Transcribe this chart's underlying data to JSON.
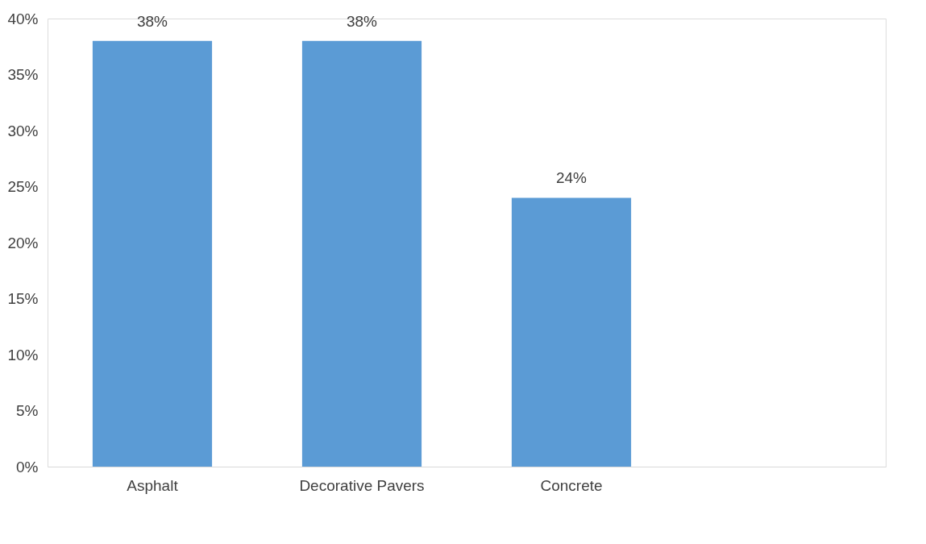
{
  "chart_data": {
    "type": "bar",
    "categories": [
      "Asphalt",
      "Decorative Pavers",
      "Concrete",
      null
    ],
    "values": [
      38,
      38,
      24,
      null
    ],
    "value_labels": [
      "38%",
      "38%",
      "24%",
      null
    ],
    "color": "#5b9bd5",
    "ylim": [
      0,
      40
    ],
    "yticks": [
      {
        "value": 0,
        "label": "0%"
      },
      {
        "value": 5,
        "label": "5%"
      },
      {
        "value": 10,
        "label": "10%"
      },
      {
        "value": 15,
        "label": "15%"
      },
      {
        "value": 20,
        "label": "20%"
      },
      {
        "value": 25,
        "label": "25%"
      },
      {
        "value": 30,
        "label": "30%"
      },
      {
        "value": 35,
        "label": "35%"
      },
      {
        "value": 40,
        "label": "40%"
      }
    ],
    "grid": false
  }
}
